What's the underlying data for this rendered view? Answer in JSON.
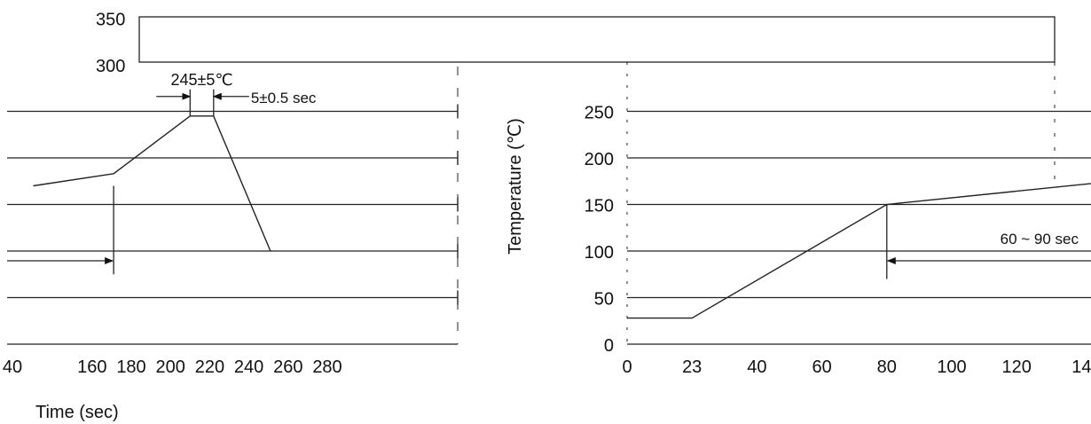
{
  "chart_data": [
    {
      "type": "line",
      "panel": "right-fragment",
      "title": "",
      "xlabel": "",
      "ylabel": "Temperature (℃)",
      "x_ticks": [
        "0",
        "23",
        "40",
        "60",
        "80",
        "100",
        "120",
        "14"
      ],
      "y_ticks": [
        "0",
        "50",
        "100",
        "150",
        "200",
        "250",
        "300",
        "350"
      ],
      "xlim": [
        0,
        140
      ],
      "ylim": [
        0,
        350
      ],
      "grid": true,
      "series": [
        {
          "x": [
            0,
            20,
            80,
            150
          ],
          "y": [
            28,
            28,
            150,
            175
          ]
        }
      ],
      "annotations": [
        {
          "text": "60 ~ 90 sec",
          "x_from": 80,
          "x_to": 140,
          "y": 100
        }
      ]
    },
    {
      "type": "line",
      "panel": "left-fragment",
      "title": "",
      "xlabel": "Time (sec)",
      "ylabel": "",
      "x_ticks": [
        "40",
        "160",
        "180",
        "200",
        "220",
        "240",
        "260",
        "280"
      ],
      "xlim": [
        130,
        280
      ],
      "ylim": [
        0,
        350
      ],
      "grid": true,
      "series": [
        {
          "x": [
            130,
            171,
            210,
            222,
            251
          ],
          "y": [
            170,
            183,
            245,
            245,
            100
          ]
        }
      ],
      "annotations": [
        {
          "text": "245±5℃",
          "x": 216,
          "y": 245
        },
        {
          "text": "5±0.5 sec",
          "x_from": 210,
          "x_to": 222,
          "y": 245
        },
        {
          "text": "",
          "x_from": 130,
          "x_to": 171,
          "y": 100
        }
      ]
    }
  ]
}
